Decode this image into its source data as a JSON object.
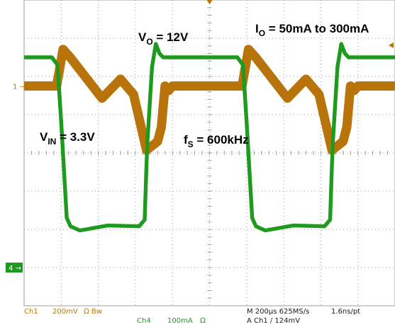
{
  "chart_data": {
    "type": "line",
    "title": "",
    "xlabel": "",
    "ylabel": "",
    "grid": true,
    "grid_divisions": {
      "x": 10,
      "y": 8
    },
    "time_per_div_us": 200,
    "x_range_us": [
      0,
      2000
    ],
    "series": [
      {
        "name": "Ch1",
        "color": "#B8740A",
        "marker_label": "1",
        "scale_per_div_mV": 200,
        "noise_band_mV": 48,
        "x_us": [
          0,
          175,
          210,
          250,
          420,
          520,
          590,
          620,
          660,
          720,
          740,
          760,
          780,
          800,
          830,
          1000,
          1175,
          1210,
          1250,
          1420,
          1520,
          1590,
          1620,
          1660,
          1720,
          1740,
          1760,
          1780,
          1800,
          1830,
          2000
        ],
        "values_mV": [
          0,
          0,
          192,
          148,
          -64,
          36,
          -44,
          -168,
          -336,
          -290,
          -216,
          0,
          -24,
          0,
          0,
          0,
          0,
          192,
          148,
          -64,
          36,
          -44,
          -168,
          -336,
          -290,
          -216,
          0,
          -24,
          0,
          0,
          0
        ]
      },
      {
        "name": "Ch4",
        "color": "#1E9A1E",
        "marker_label": "4",
        "scale_per_div_mA": 100,
        "noise_band_mA": 10,
        "x_us": [
          0,
          150,
          180,
          200,
          230,
          250,
          300,
          450,
          620,
          650,
          660,
          665,
          690,
          710,
          730,
          750,
          780,
          1000,
          1150,
          1180,
          1200,
          1230,
          1250,
          1300,
          1450,
          1620,
          1650,
          1660,
          1665,
          1690,
          1710,
          1730,
          1750,
          1780,
          2000
        ],
        "values_mA": [
          550,
          550,
          530,
          380,
          130,
          108,
          97,
          110,
          108,
          125,
          270,
          330,
          525,
          585,
          560,
          550,
          550,
          550,
          550,
          530,
          380,
          130,
          108,
          97,
          110,
          108,
          125,
          270,
          330,
          525,
          585,
          560,
          550,
          550,
          550
        ]
      }
    ],
    "annotations": {
      "vo": {
        "main": "V",
        "sub": "O",
        "rest": " = 12V"
      },
      "io": {
        "main": "I",
        "sub": "O",
        "rest": " = 50mA to 300mA"
      },
      "vin": {
        "main": "V",
        "sub": "IN",
        "rest": " = 3.3V"
      },
      "fs": {
        "main": "f",
        "sub": "S",
        "rest": " = 600kHz"
      }
    },
    "status_bar": {
      "ch1": "Ch1",
      "ch1_scale": "200mV",
      "ch1_bw": "Ω Bw",
      "ch4": "Ch4",
      "ch4_scale": "100mA",
      "ch4_unit": "Ω",
      "timebase": "M 200µs 625MS/s",
      "resolution": "1.6ns/pt",
      "trigger": "A  Ch1  ∕  124mV"
    },
    "colors": {
      "grid": "#9E9E9E",
      "status_text": "#B07A10",
      "ch4_marker": "#1E9A1E"
    }
  }
}
